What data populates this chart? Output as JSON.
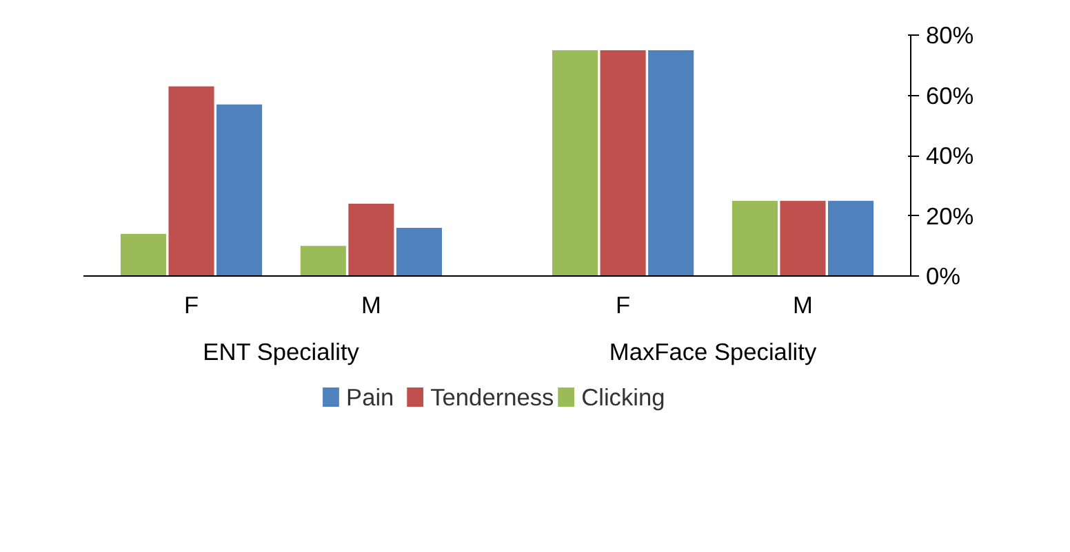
{
  "chart_data": {
    "type": "bar",
    "categories": [
      "F",
      "M",
      "F",
      "M"
    ],
    "annotations": [
      "ENT Speciality",
      "MaxFace Speciality"
    ],
    "series": [
      {
        "name": "Pain",
        "color": "#4f81bd",
        "values": [
          57,
          16,
          75,
          25
        ]
      },
      {
        "name": "Tenderness",
        "color": "#c0504d",
        "values": [
          63,
          24,
          75,
          25
        ]
      },
      {
        "name": "Clicking",
        "color": "#9bbb59",
        "values": [
          14,
          10,
          75,
          25
        ]
      }
    ],
    "ylim": [
      0,
      80
    ],
    "yticks": [
      {
        "value": 0,
        "label": "0%"
      },
      {
        "value": 20,
        "label": "20%"
      },
      {
        "value": 40,
        "label": "40%"
      },
      {
        "value": 60,
        "label": "60%"
      },
      {
        "value": 80,
        "label": "80%"
      }
    ],
    "grid": false,
    "legend": "bottom"
  }
}
